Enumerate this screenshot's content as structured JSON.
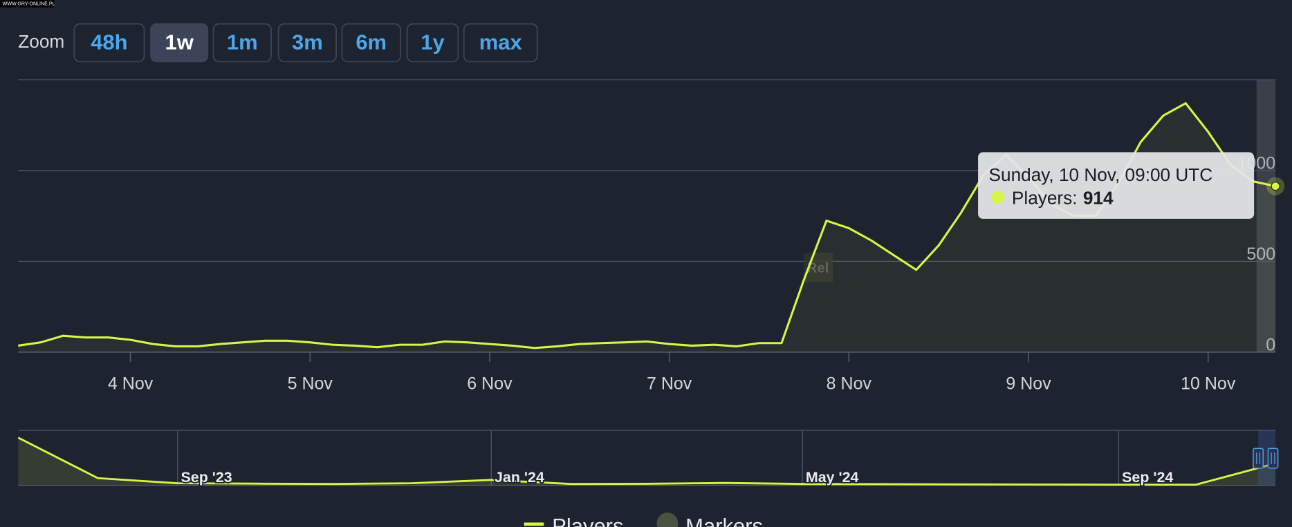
{
  "watermark": "WWW.GRY-ONLINE.PL",
  "toolbar": {
    "label": "Zoom",
    "buttons": [
      "48h",
      "1w",
      "1m",
      "3m",
      "6m",
      "1y",
      "max"
    ],
    "active": 1
  },
  "chart_data": [
    {
      "type": "line",
      "x": [
        "3 Nov 09:00",
        "3 Nov 12:00",
        "3 Nov 15:00",
        "3 Nov 18:00",
        "3 Nov 21:00",
        "4 Nov 00:00",
        "4 Nov 03:00",
        "4 Nov 06:00",
        "4 Nov 09:00",
        "4 Nov 12:00",
        "4 Nov 15:00",
        "4 Nov 18:00",
        "4 Nov 21:00",
        "5 Nov 00:00",
        "5 Nov 03:00",
        "5 Nov 06:00",
        "5 Nov 09:00",
        "5 Nov 12:00",
        "5 Nov 15:00",
        "5 Nov 18:00",
        "5 Nov 21:00",
        "6 Nov 00:00",
        "6 Nov 03:00",
        "6 Nov 06:00",
        "6 Nov 09:00",
        "6 Nov 12:00",
        "6 Nov 15:00",
        "6 Nov 18:00",
        "6 Nov 21:00",
        "7 Nov 00:00",
        "7 Nov 03:00",
        "7 Nov 06:00",
        "7 Nov 09:00",
        "7 Nov 12:00",
        "7 Nov 15:00",
        "7 Nov 18:00",
        "7 Nov 21:00",
        "8 Nov 00:00",
        "8 Nov 03:00",
        "8 Nov 06:00",
        "8 Nov 09:00",
        "8 Nov 12:00",
        "8 Nov 15:00",
        "8 Nov 18:00",
        "8 Nov 21:00",
        "9 Nov 00:00",
        "9 Nov 03:00",
        "9 Nov 06:00",
        "9 Nov 09:00",
        "9 Nov 12:00",
        "9 Nov 15:00",
        "9 Nov 18:00",
        "9 Nov 21:00",
        "10 Nov 00:00",
        "10 Nov 03:00",
        "10 Nov 06:00",
        "10 Nov 09:00"
      ],
      "series": [
        {
          "name": "Players",
          "color": "#d7f547",
          "values": [
            36,
            54,
            90,
            81,
            81,
            68,
            45,
            32,
            32,
            45,
            54,
            63,
            63,
            54,
            41,
            36,
            27,
            41,
            41,
            59,
            54,
            45,
            36,
            23,
            32,
            45,
            50,
            54,
            59,
            45,
            36,
            41,
            32,
            50,
            50,
            400,
            724,
            683,
            615,
            534,
            453,
            588,
            769,
            977,
            1086,
            964,
            815,
            751,
            751,
            932,
            1158,
            1303,
            1371,
            1213,
            1032,
            941,
            914
          ]
        }
      ],
      "xlim": [
        "3 Nov 09:00",
        "10 Nov 09:00"
      ],
      "xticks": [
        "4 Nov",
        "5 Nov",
        "6 Nov",
        "7 Nov",
        "8 Nov",
        "9 Nov",
        "10 Nov"
      ],
      "ylim": [
        0,
        1500
      ],
      "yticks": [
        0,
        500,
        1000
      ],
      "grid": true,
      "annotation": {
        "text": "Rel",
        "x": "7 Nov 18:00"
      },
      "tooltip": {
        "title": "Sunday, 10 Nov, 09:00 UTC",
        "label": "Players:",
        "index": 56
      },
      "legend": {
        "items": [
          "Players",
          "Markers"
        ],
        "marker_color": "#4a5340",
        "position": "bottom"
      }
    },
    {
      "type": "navigator",
      "x": [
        "Jul '23",
        "Aug '23",
        "Sep '23",
        "Oct '23",
        "Nov '23",
        "Dec '23",
        "Jan '24",
        "Feb '24",
        "Mar '24",
        "Apr '24",
        "May '24",
        "Jun '24",
        "Jul '24",
        "Aug '24",
        "Sep '24",
        "Oct '24",
        "Nov '24"
      ],
      "series": [
        {
          "name": "Players",
          "color": "#d7f547",
          "values": [
            1300,
            200,
            60,
            50,
            40,
            60,
            150,
            40,
            45,
            70,
            40,
            35,
            30,
            25,
            20,
            20,
            600
          ]
        }
      ],
      "xlim": [
        "Jul '23",
        "Nov '24"
      ],
      "xticks": [
        "Sep '23",
        "Jan '24",
        "May '24",
        "Sep '24"
      ],
      "ylim": [
        0,
        1500
      ]
    }
  ]
}
